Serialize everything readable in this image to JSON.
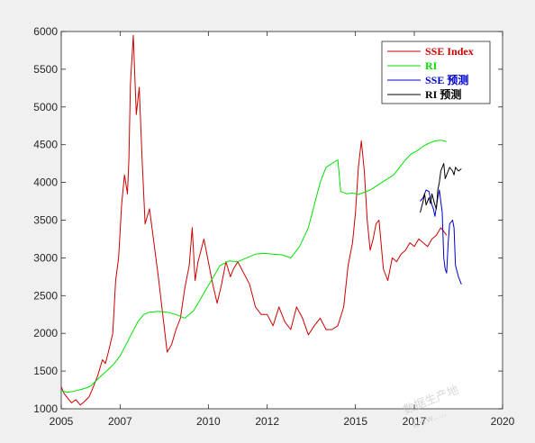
{
  "chart_data": {
    "type": "line",
    "title": "",
    "xlabel": "",
    "ylabel": "",
    "xlim": [
      2005,
      2020
    ],
    "ylim": [
      1000,
      6000
    ],
    "xticks": [
      "2005",
      "2007",
      "2010",
      "2012",
      "2015",
      "2017",
      "2020"
    ],
    "xtick_values": [
      2005,
      2007,
      2010,
      2012,
      2015,
      2017,
      2020
    ],
    "yticks": [
      "1000",
      "1500",
      "2000",
      "2500",
      "3000",
      "3500",
      "4000",
      "4500",
      "5000",
      "5500",
      "6000"
    ],
    "ytick_values": [
      1000,
      1500,
      2000,
      2500,
      3000,
      3500,
      4000,
      4500,
      5000,
      5500,
      6000
    ],
    "grid": false,
    "legend_position": "top-right",
    "series": [
      {
        "name": "SSE Index",
        "color": "#cc0000",
        "x": [
          2005.0,
          2005.1,
          2005.2,
          2005.35,
          2005.5,
          2005.65,
          2005.8,
          2005.95,
          2006.1,
          2006.25,
          2006.4,
          2006.5,
          2006.6,
          2006.75,
          2006.85,
          2006.95,
          2007.05,
          2007.15,
          2007.25,
          2007.3,
          2007.35,
          2007.45,
          2007.55,
          2007.65,
          2007.75,
          2007.85,
          2008.0,
          2008.15,
          2008.3,
          2008.45,
          2008.6,
          2008.75,
          2008.9,
          2009.05,
          2009.2,
          2009.35,
          2009.45,
          2009.55,
          2009.65,
          2009.75,
          2009.85,
          2010.0,
          2010.15,
          2010.3,
          2010.45,
          2010.6,
          2010.75,
          2010.85,
          2011.0,
          2011.2,
          2011.4,
          2011.6,
          2011.8,
          2012.0,
          2012.2,
          2012.4,
          2012.6,
          2012.8,
          2013.0,
          2013.2,
          2013.4,
          2013.6,
          2013.8,
          2014.0,
          2014.2,
          2014.4,
          2014.6,
          2014.75,
          2014.9,
          2015.0,
          2015.1,
          2015.2,
          2015.3,
          2015.4,
          2015.5,
          2015.6,
          2015.7,
          2015.8,
          2015.95,
          2016.1,
          2016.25,
          2016.4,
          2016.55,
          2016.7,
          2016.85,
          2017.0,
          2017.15,
          2017.3,
          2017.45,
          2017.6,
          2017.75,
          2017.9,
          2018.0,
          2018.1
        ],
        "y": [
          1290,
          1200,
          1150,
          1080,
          1120,
          1050,
          1100,
          1160,
          1300,
          1450,
          1650,
          1600,
          1750,
          2000,
          2700,
          3000,
          3700,
          4100,
          3850,
          4300,
          5300,
          5950,
          4900,
          5260,
          4300,
          3450,
          3650,
          3200,
          2750,
          2250,
          1750,
          1850,
          2050,
          2200,
          2600,
          2900,
          3400,
          2700,
          2950,
          3100,
          3250,
          2950,
          2650,
          2400,
          2650,
          2950,
          2750,
          2850,
          2950,
          2800,
          2650,
          2350,
          2250,
          2250,
          2100,
          2350,
          2150,
          2050,
          2350,
          2200,
          1980,
          2100,
          2200,
          2050,
          2050,
          2100,
          2350,
          2900,
          3200,
          3600,
          4200,
          4550,
          4150,
          3500,
          3100,
          3250,
          3450,
          3500,
          2850,
          2700,
          3000,
          2950,
          3050,
          3100,
          3200,
          3150,
          3250,
          3200,
          3150,
          3250,
          3300,
          3400,
          3350,
          3300
        ]
      },
      {
        "name": "RI",
        "color": "#00e000",
        "x": [
          2005.0,
          2005.2,
          2005.4,
          2005.6,
          2005.8,
          2006.0,
          2006.2,
          2006.4,
          2006.6,
          2006.8,
          2007.0,
          2007.2,
          2007.4,
          2007.6,
          2007.8,
          2008.0,
          2008.3,
          2008.6,
          2008.9,
          2009.2,
          2009.5,
          2009.8,
          2010.1,
          2010.4,
          2010.7,
          2011.0,
          2011.3,
          2011.6,
          2011.9,
          2012.2,
          2012.5,
          2012.8,
          2013.1,
          2013.4,
          2013.6,
          2013.8,
          2014.0,
          2014.2,
          2014.4,
          2014.5,
          2014.7,
          2014.9,
          2015.1,
          2015.3,
          2015.5,
          2015.7,
          2015.9,
          2016.1,
          2016.3,
          2016.5,
          2016.7,
          2016.9,
          2017.1,
          2017.3,
          2017.5,
          2017.7,
          2017.9,
          2018.1
        ],
        "y": [
          1240,
          1220,
          1230,
          1250,
          1270,
          1300,
          1380,
          1450,
          1520,
          1600,
          1700,
          1850,
          2000,
          2150,
          2250,
          2280,
          2290,
          2280,
          2250,
          2200,
          2300,
          2500,
          2700,
          2900,
          2960,
          2950,
          3000,
          3050,
          3060,
          3050,
          3040,
          3000,
          3150,
          3400,
          3700,
          4000,
          4200,
          4250,
          4300,
          3880,
          3850,
          3860,
          3840,
          3870,
          3900,
          3950,
          4000,
          4050,
          4100,
          4200,
          4300,
          4380,
          4420,
          4480,
          4520,
          4550,
          4560,
          4540
        ]
      },
      {
        "name": "SSE 预测",
        "color": "#0000cc",
        "x": [
          2017.2,
          2017.3,
          2017.4,
          2017.5,
          2017.6,
          2017.65,
          2017.7,
          2017.8,
          2017.85,
          2017.9,
          2017.95,
          2018.0,
          2018.05,
          2018.1,
          2018.15,
          2018.2,
          2018.3,
          2018.35,
          2018.4,
          2018.5,
          2018.6
        ],
        "y": [
          3750,
          3800,
          3900,
          3880,
          3700,
          3650,
          3550,
          3800,
          3900,
          3750,
          3600,
          3000,
          2850,
          2800,
          3200,
          3450,
          3500,
          3400,
          2900,
          2750,
          2650
        ]
      },
      {
        "name": "RI 预测",
        "color": "#000000",
        "x": [
          2017.2,
          2017.3,
          2017.35,
          2017.4,
          2017.5,
          2017.55,
          2017.6,
          2017.7,
          2017.75,
          2017.8,
          2017.85,
          2017.9,
          2018.0,
          2018.05,
          2018.1,
          2018.2,
          2018.3,
          2018.35,
          2018.4,
          2018.5,
          2018.6
        ],
        "y": [
          3600,
          3750,
          3850,
          3700,
          3800,
          3720,
          3850,
          3700,
          3650,
          3900,
          4000,
          4150,
          4250,
          4050,
          4100,
          4200,
          4150,
          4100,
          4200,
          4150,
          4180
        ]
      }
    ]
  },
  "watermark": "数据生产地",
  "watermark_url": "www.…."
}
